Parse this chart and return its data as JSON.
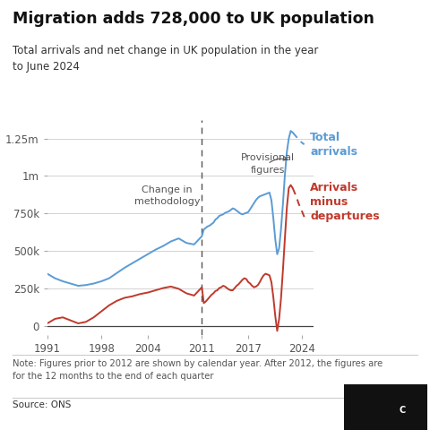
{
  "title": "Migration adds 728,000 to UK population",
  "subtitle": "Total arrivals and net change in UK population in the year\nto June 2024",
  "note": "Note: Figures prior to 2012 are shown by calendar year. After 2012, the figures are\nfor the 12 months to the end of each quarter",
  "source": "Source: ONS",
  "blue_color": "#5b9bd5",
  "red_color": "#c0392b",
  "methodology_year": 2011,
  "total_arrivals_label": "Total\narrivals",
  "net_label": "Arrivals\nminus\ndepartures",
  "methodology_label": "Change in\nmethodology",
  "provisional_label": "Provisional\nfigures",
  "xlim": [
    1991,
    2025.5
  ],
  "ylim": [
    -60000,
    1370000
  ],
  "yticks": [
    0,
    250000,
    500000,
    750000,
    1000000,
    1250000
  ],
  "ytick_labels": [
    "0",
    "250k",
    "500k",
    "750k",
    "1m",
    "1.25m"
  ],
  "xticks": [
    1991,
    1998,
    2004,
    2011,
    2017,
    2024
  ],
  "blue_solid_years": [
    1991,
    1992,
    1993,
    1994,
    1995,
    1996,
    1997,
    1998,
    1999,
    2000,
    2001,
    2002,
    2003,
    2004,
    2005,
    2006,
    2007,
    2008,
    2009,
    2010,
    2011,
    2011.25,
    2011.5,
    2011.75,
    2012.0,
    2012.25,
    2012.5,
    2012.75,
    2013.0,
    2013.25,
    2013.5,
    2013.75,
    2014.0,
    2014.25,
    2014.5,
    2014.75,
    2015.0,
    2015.25,
    2015.5,
    2015.75,
    2016.0,
    2016.25,
    2016.5,
    2016.75,
    2017.0,
    2017.25,
    2017.5,
    2017.75,
    2018.0,
    2018.25,
    2018.5,
    2018.75,
    2019.0,
    2019.25,
    2019.5,
    2019.75,
    2020.0,
    2020.25,
    2020.5,
    2020.75,
    2021.0,
    2021.25,
    2021.5,
    2021.75,
    2022.0,
    2022.25,
    2022.5,
    2022.75
  ],
  "blue_solid_values": [
    350000,
    320000,
    300000,
    285000,
    270000,
    275000,
    285000,
    300000,
    320000,
    355000,
    390000,
    420000,
    450000,
    480000,
    510000,
    535000,
    565000,
    585000,
    555000,
    545000,
    600000,
    645000,
    655000,
    665000,
    670000,
    680000,
    690000,
    710000,
    720000,
    735000,
    740000,
    745000,
    755000,
    760000,
    765000,
    775000,
    785000,
    780000,
    770000,
    760000,
    750000,
    745000,
    750000,
    755000,
    760000,
    780000,
    800000,
    820000,
    840000,
    855000,
    865000,
    870000,
    875000,
    880000,
    885000,
    890000,
    840000,
    720000,
    580000,
    480000,
    520000,
    650000,
    820000,
    1010000,
    1160000,
    1250000,
    1300000,
    1290000
  ],
  "blue_dashed_years": [
    2022.75,
    2023.0,
    2023.25,
    2023.5,
    2023.75,
    2024.0,
    2024.25
  ],
  "blue_dashed_values": [
    1290000,
    1275000,
    1260000,
    1245000,
    1230000,
    1220000,
    1210000
  ],
  "red_solid_years": [
    1991,
    1992,
    1993,
    1994,
    1995,
    1996,
    1997,
    1998,
    1999,
    2000,
    2001,
    2002,
    2003,
    2004,
    2005,
    2006,
    2007,
    2008,
    2009,
    2010,
    2011,
    2011.25,
    2011.5,
    2011.75,
    2012.0,
    2012.25,
    2012.5,
    2012.75,
    2013.0,
    2013.25,
    2013.5,
    2013.75,
    2014.0,
    2014.25,
    2014.5,
    2014.75,
    2015.0,
    2015.25,
    2015.5,
    2015.75,
    2016.0,
    2016.25,
    2016.5,
    2016.75,
    2017.0,
    2017.25,
    2017.5,
    2017.75,
    2018.0,
    2018.25,
    2018.5,
    2018.75,
    2019.0,
    2019.25,
    2019.5,
    2019.75,
    2020.0,
    2020.25,
    2020.5,
    2020.75,
    2021.0,
    2021.25,
    2021.5,
    2021.75,
    2022.0,
    2022.25,
    2022.5,
    2022.75
  ],
  "red_solid_values": [
    20000,
    50000,
    60000,
    40000,
    20000,
    30000,
    60000,
    100000,
    140000,
    170000,
    190000,
    200000,
    215000,
    225000,
    240000,
    255000,
    265000,
    250000,
    220000,
    205000,
    260000,
    155000,
    165000,
    180000,
    195000,
    210000,
    220000,
    235000,
    240000,
    255000,
    260000,
    270000,
    265000,
    255000,
    245000,
    240000,
    240000,
    255000,
    270000,
    280000,
    295000,
    310000,
    320000,
    315000,
    295000,
    285000,
    270000,
    260000,
    265000,
    275000,
    295000,
    320000,
    340000,
    350000,
    345000,
    340000,
    295000,
    195000,
    70000,
    -30000,
    50000,
    190000,
    380000,
    590000,
    790000,
    920000,
    940000,
    920000
  ],
  "red_dashed_years": [
    2022.75,
    2023.0,
    2023.25,
    2023.5,
    2023.75,
    2024.0,
    2024.25
  ],
  "red_dashed_values": [
    920000,
    890000,
    860000,
    820000,
    790000,
    760000,
    728000
  ]
}
